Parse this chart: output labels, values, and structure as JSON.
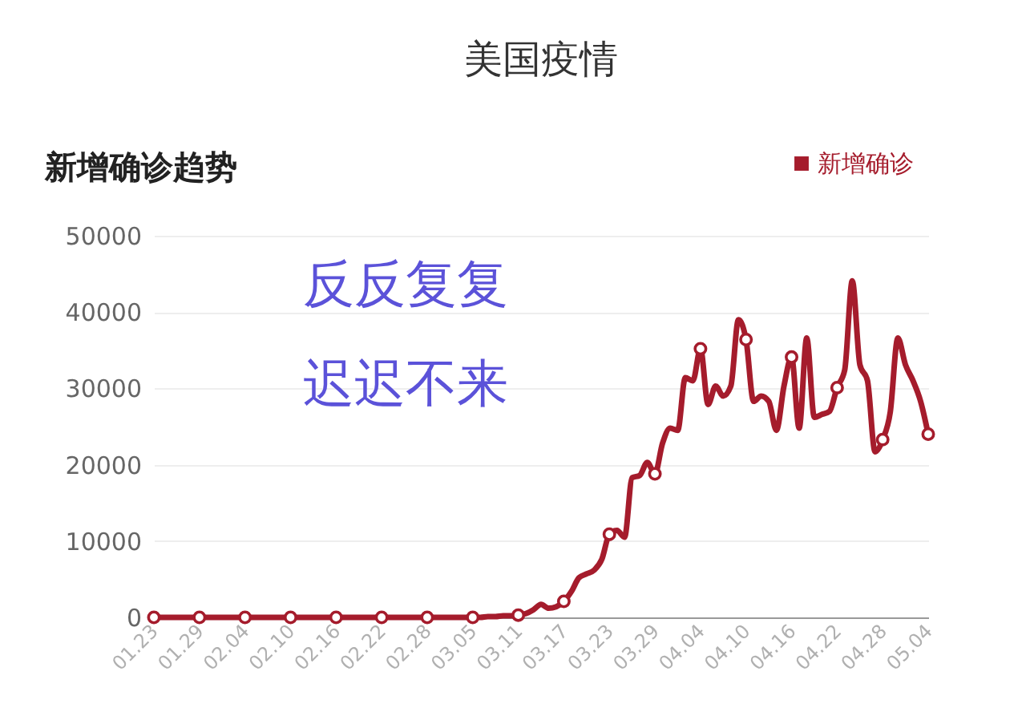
{
  "chart_data": {
    "type": "line",
    "title": "美国疫情",
    "subtitle": "新增确诊趋势",
    "annotations": [
      "反反复复",
      "迟迟不来"
    ],
    "categories": [
      "01.23",
      null,
      null,
      null,
      null,
      null,
      "01.29",
      null,
      null,
      null,
      null,
      null,
      "02.04",
      null,
      null,
      null,
      null,
      null,
      "02.10",
      null,
      null,
      null,
      null,
      null,
      "02.16",
      null,
      null,
      null,
      null,
      null,
      "02.22",
      null,
      null,
      null,
      null,
      null,
      "02.28",
      null,
      null,
      null,
      null,
      null,
      "03.05",
      null,
      null,
      null,
      null,
      null,
      "03.11",
      null,
      null,
      null,
      null,
      null,
      "03.17",
      null,
      null,
      null,
      null,
      null,
      "03.23",
      null,
      null,
      null,
      null,
      null,
      "03.29",
      null,
      null,
      null,
      null,
      null,
      "04.04",
      null,
      null,
      null,
      null,
      null,
      "04.10",
      null,
      null,
      null,
      null,
      null,
      "04.16",
      null,
      null,
      null,
      null,
      null,
      "04.22",
      null,
      null,
      null,
      null,
      null,
      "04.28",
      null,
      null,
      null,
      null,
      null,
      "05.04"
    ],
    "series": [
      {
        "name": "新增确诊",
        "color": "#a51c2c",
        "values": [
          0,
          0,
          0,
          0,
          0,
          0,
          0,
          0,
          0,
          0,
          0,
          0,
          0,
          0,
          0,
          0,
          0,
          0,
          0,
          0,
          0,
          0,
          0,
          0,
          0,
          0,
          0,
          0,
          0,
          0,
          0,
          0,
          0,
          0,
          0,
          0,
          0,
          0,
          0,
          0,
          0,
          0,
          0,
          0,
          100,
          100,
          200,
          200,
          300,
          500,
          1000,
          1700,
          1200,
          1400,
          2100,
          3400,
          5200,
          5700,
          6200,
          7600,
          10900,
          11400,
          10500,
          18300,
          18600,
          20300,
          18800,
          22800,
          24800,
          24500,
          31400,
          31000,
          35200,
          27900,
          30300,
          29000,
          30300,
          39000,
          36400,
          28300,
          29000,
          28300,
          24500,
          30300,
          34100,
          24800,
          36600,
          26200,
          26600,
          27000,
          30100,
          32400,
          44100,
          33100,
          31000,
          21700,
          23300,
          26900,
          36600,
          33100,
          31000,
          28300,
          24000
        ]
      },
      {
        "type": "scatter",
        "marker": "circle",
        "color": "#a51c2c",
        "x": [
          "01.23",
          "01.29",
          "02.04",
          "02.10",
          "02.16",
          "02.22",
          "02.28",
          "03.05",
          "03.11",
          "03.17",
          "03.23",
          "03.29",
          "04.04",
          "04.10",
          "04.16",
          "04.22",
          "04.28",
          "05.04"
        ],
        "values": [
          0,
          0,
          0,
          0,
          0,
          0,
          0,
          0,
          300,
          2100,
          10900,
          18800,
          35200,
          36400,
          34100,
          30100,
          23300,
          24000
        ]
      }
    ],
    "ylim": [
      0,
      50000
    ],
    "yticks": [
      0,
      10000,
      20000,
      30000,
      40000,
      50000
    ],
    "grid": "y",
    "legend": "top right",
    "line_style": "solid"
  }
}
